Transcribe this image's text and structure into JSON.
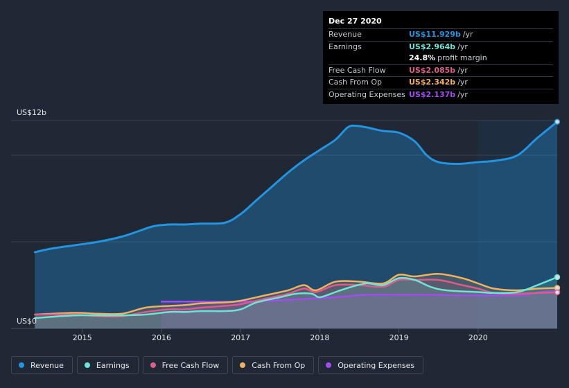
{
  "tooltip": {
    "date": "Dec 27 2020",
    "rows": [
      {
        "label": "Revenue",
        "value": "US$11.929b",
        "unit": "/yr",
        "color": "#2394df"
      },
      {
        "label": "Earnings",
        "value": "US$2.964b",
        "unit": "/yr",
        "color": "#6ce5d6"
      },
      {
        "label": "",
        "value": "24.8%",
        "unit": "profit margin",
        "color": "#ffffff"
      },
      {
        "label": "Free Cash Flow",
        "value": "US$2.085b",
        "unit": "/yr",
        "color": "#dc5c8c"
      },
      {
        "label": "Cash From Op",
        "value": "US$2.342b",
        "unit": "/yr",
        "color": "#f0b160"
      },
      {
        "label": "Operating Expenses",
        "value": "US$2.137b",
        "unit": "/yr",
        "color": "#a24cf0"
      }
    ]
  },
  "legend": [
    {
      "label": "Revenue",
      "color": "#2394df"
    },
    {
      "label": "Earnings",
      "color": "#6ce5d6"
    },
    {
      "label": "Free Cash Flow",
      "color": "#dc5c8c"
    },
    {
      "label": "Cash From Op",
      "color": "#f0b160"
    },
    {
      "label": "Operating Expenses",
      "color": "#a24cf0"
    }
  ],
  "chart_data": {
    "type": "area",
    "y_top_label": "US$12b",
    "y_bottom_label": "US$0",
    "ylim": [
      0,
      12
    ],
    "xlim": [
      2014.1,
      2021.0
    ],
    "x_ticks": [
      "2015",
      "2016",
      "2017",
      "2018",
      "2019",
      "2020"
    ],
    "x_tick_values": [
      2015,
      2016,
      2017,
      2018,
      2019,
      2020
    ],
    "forecast_region_start": 2020.0,
    "series": [
      {
        "name": "Revenue",
        "color": "#2394df",
        "x": [
          2014.4,
          2014.6,
          2014.9,
          2015.2,
          2015.5,
          2015.7,
          2015.9,
          2016.1,
          2016.3,
          2016.5,
          2016.8,
          2017.0,
          2017.2,
          2017.4,
          2017.6,
          2017.8,
          2018.0,
          2018.2,
          2018.35,
          2018.45,
          2018.6,
          2018.8,
          2019.0,
          2019.2,
          2019.35,
          2019.5,
          2019.75,
          2020.0,
          2020.25,
          2020.5,
          2020.75,
          2021.0
        ],
        "values": [
          4.4,
          4.6,
          4.8,
          5.0,
          5.3,
          5.6,
          5.9,
          6.0,
          6.0,
          6.05,
          6.1,
          6.6,
          7.4,
          8.2,
          9.0,
          9.7,
          10.3,
          10.9,
          11.6,
          11.7,
          11.6,
          11.4,
          11.3,
          10.8,
          10.0,
          9.6,
          9.5,
          9.6,
          9.7,
          10.0,
          11.0,
          11.93
        ]
      },
      {
        "name": "Earnings",
        "color": "#6ce5d6",
        "x": [
          2014.4,
          2014.9,
          2015.2,
          2015.5,
          2015.8,
          2016.1,
          2016.3,
          2016.5,
          2016.8,
          2017.0,
          2017.2,
          2017.5,
          2017.7,
          2017.9,
          2018.0,
          2018.2,
          2018.4,
          2018.6,
          2018.8,
          2019.0,
          2019.2,
          2019.4,
          2019.6,
          2020.0,
          2020.2,
          2020.5,
          2020.75,
          2021.0
        ],
        "values": [
          0.6,
          0.75,
          0.75,
          0.75,
          0.8,
          0.95,
          0.95,
          1.0,
          1.0,
          1.1,
          1.5,
          1.8,
          2.0,
          2.0,
          1.8,
          2.1,
          2.4,
          2.6,
          2.5,
          2.9,
          2.8,
          2.4,
          2.2,
          2.1,
          2.05,
          2.1,
          2.5,
          2.96
        ]
      },
      {
        "name": "Free Cash Flow",
        "color": "#dc5c8c",
        "x": [
          2014.4,
          2014.9,
          2015.2,
          2015.5,
          2015.8,
          2016.1,
          2016.3,
          2016.5,
          2016.8,
          2017.0,
          2017.3,
          2017.6,
          2017.8,
          2017.95,
          2018.2,
          2018.5,
          2018.8,
          2019.0,
          2019.2,
          2019.5,
          2019.8,
          2020.0,
          2020.2,
          2020.5,
          2020.75,
          2021.0
        ],
        "values": [
          0.8,
          0.8,
          0.7,
          0.7,
          0.95,
          1.1,
          1.1,
          1.2,
          1.3,
          1.4,
          1.7,
          2.0,
          2.3,
          2.1,
          2.5,
          2.5,
          2.4,
          2.8,
          2.8,
          2.8,
          2.5,
          2.3,
          2.05,
          2.0,
          2.05,
          2.08
        ]
      },
      {
        "name": "Cash From Op",
        "color": "#f0b160",
        "x": [
          2014.4,
          2014.9,
          2015.2,
          2015.5,
          2015.8,
          2016.1,
          2016.3,
          2016.5,
          2016.8,
          2017.0,
          2017.3,
          2017.6,
          2017.8,
          2017.95,
          2018.2,
          2018.5,
          2018.8,
          2019.0,
          2019.2,
          2019.5,
          2019.8,
          2020.0,
          2020.2,
          2020.5,
          2020.75,
          2021.0
        ],
        "values": [
          0.8,
          0.9,
          0.85,
          0.85,
          1.2,
          1.3,
          1.35,
          1.45,
          1.5,
          1.6,
          1.9,
          2.2,
          2.5,
          2.2,
          2.7,
          2.7,
          2.6,
          3.1,
          3.0,
          3.15,
          2.9,
          2.6,
          2.3,
          2.2,
          2.3,
          2.34
        ]
      },
      {
        "name": "Operating Expenses",
        "color": "#a24cf0",
        "x": [
          2016.0,
          2016.3,
          2016.6,
          2017.0,
          2017.4,
          2017.8,
          2018.2,
          2018.6,
          2019.0,
          2019.4,
          2019.8,
          2020.2,
          2020.6,
          2020.8,
          2021.0
        ],
        "values": [
          1.55,
          1.55,
          1.55,
          1.55,
          1.6,
          1.7,
          1.8,
          1.95,
          1.95,
          1.95,
          1.9,
          1.9,
          1.95,
          2.1,
          2.14
        ]
      }
    ]
  }
}
